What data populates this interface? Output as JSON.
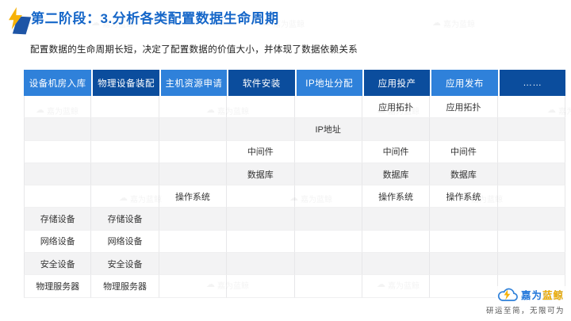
{
  "slide": {
    "title": "第二阶段：3.分析各类配置数据生命周期",
    "subtitle": "配置数据的生命周期长短，决定了配置数据的价值大小，并体现了数据依赖关系"
  },
  "table": {
    "columns": [
      {
        "label": "设备机房入库",
        "tone": "light"
      },
      {
        "label": "物理设备装配",
        "tone": "dark"
      },
      {
        "label": "主机资源申请",
        "tone": "light"
      },
      {
        "label": "软件安装",
        "tone": "dark"
      },
      {
        "label": "IP地址分配",
        "tone": "light"
      },
      {
        "label": "应用投产",
        "tone": "dark"
      },
      {
        "label": "应用发布",
        "tone": "light"
      },
      {
        "label": "……",
        "tone": "dark"
      }
    ],
    "rows": [
      [
        "",
        "",
        "",
        "",
        "",
        "应用拓扑",
        "应用拓扑",
        ""
      ],
      [
        "",
        "",
        "",
        "",
        "IP地址",
        "",
        "",
        ""
      ],
      [
        "",
        "",
        "",
        "中间件",
        "",
        "中间件",
        "中间件",
        ""
      ],
      [
        "",
        "",
        "",
        "数据库",
        "",
        "数据库",
        "数据库",
        ""
      ],
      [
        "",
        "",
        "操作系统",
        "",
        "",
        "操作系统",
        "操作系统",
        ""
      ],
      [
        "存储设备",
        "存储设备",
        "",
        "",
        "",
        "",
        "",
        ""
      ],
      [
        "网络设备",
        "网络设备",
        "",
        "",
        "",
        "",
        "",
        ""
      ],
      [
        "安全设备",
        "安全设备",
        "",
        "",
        "",
        "",
        "",
        ""
      ],
      [
        "物理服务器",
        "物理服务器",
        "",
        "",
        "",
        "",
        "",
        ""
      ]
    ]
  },
  "branding": {
    "watermark_text": "嘉为蓝鲸",
    "logo_text_main": "嘉为",
    "logo_text_accent": "蓝鲸",
    "tagline": "研运至简，无限可为"
  },
  "colors": {
    "header-light": "#2F81DA",
    "header-dark": "#0B4D9D",
    "title-blue": "#1566C8",
    "row-alt": "#F3F3F4",
    "grid-line": "#E7E7E9",
    "brand-blue": "#2478DA",
    "mark-yellow": "#F7B208",
    "mark-blue": "#1E55A6"
  }
}
